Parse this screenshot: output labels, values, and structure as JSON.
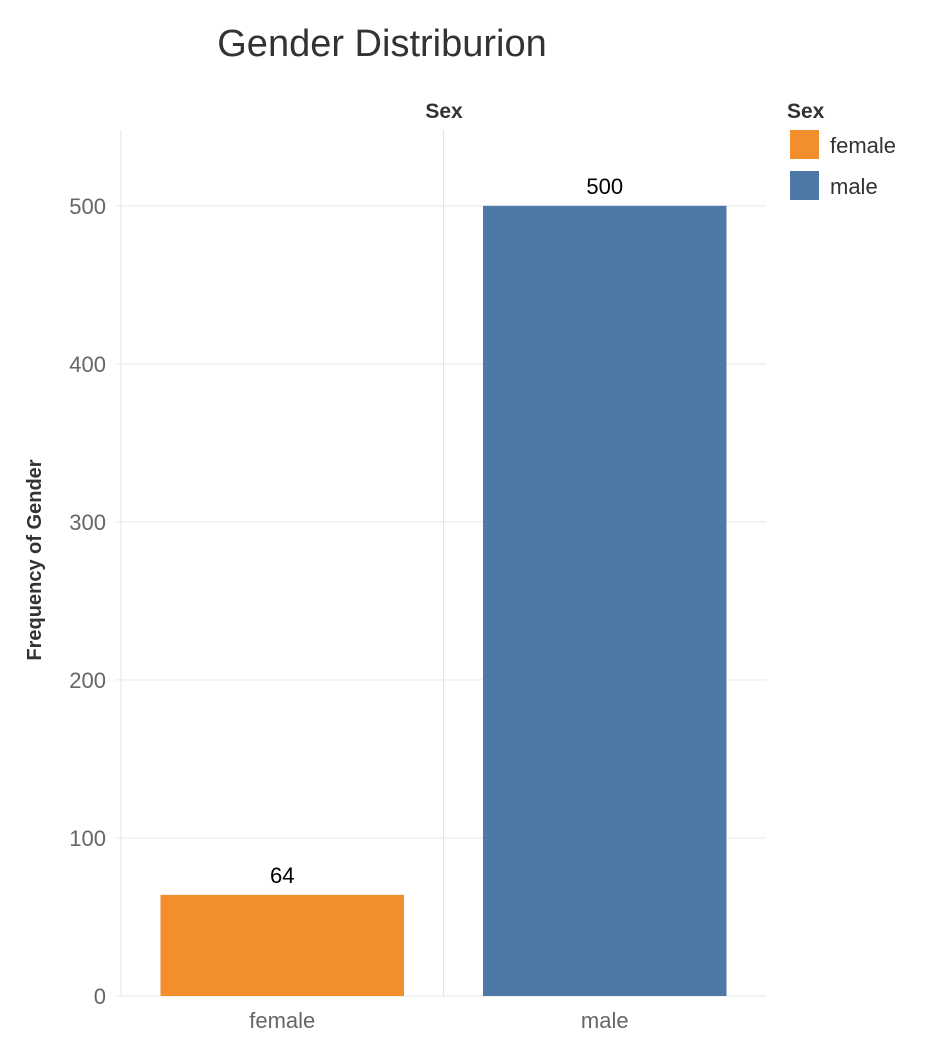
{
  "chart_data": {
    "type": "bar",
    "title": "Gender Distriburion",
    "header": "Sex",
    "xlabel": "",
    "ylabel": "Frequency of Gender",
    "categories": [
      "female",
      "male"
    ],
    "values": [
      64,
      500
    ],
    "data_labels": [
      "64",
      "500"
    ],
    "y_ticks": [
      0,
      100,
      200,
      300,
      400,
      500
    ],
    "ylim": [
      0,
      548
    ],
    "grid": true,
    "legend": {
      "title": "Sex",
      "placement": "right",
      "entries": [
        {
          "label": "female",
          "color": "#F28E2B"
        },
        {
          "label": "male",
          "color": "#4E79A7"
        }
      ]
    },
    "colors": [
      "#F28E2B",
      "#4E79A7"
    ]
  }
}
